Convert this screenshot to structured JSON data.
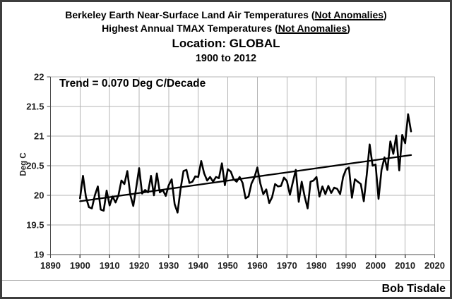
{
  "window": {
    "background": "#ffffff",
    "border_color": "#3d3d3d"
  },
  "titles": {
    "line1": {
      "pre": "Berkeley Earth Near-Surface Land Air Temperatures (",
      "underline": "Not Anomalies",
      "post": ")"
    },
    "line2": {
      "pre": "Highest Annual TMAX Temperatures (",
      "underline": "Not Anomalies",
      "post": ")"
    },
    "line3": "Location: GLOBAL",
    "line4": "1900 to 2012"
  },
  "annotations": {
    "trend_label": "Trend = 0.070 Deg C/Decade",
    "signature": "Bob Tisdale"
  },
  "chart_data": {
    "type": "line",
    "title": "Berkeley Earth Near-Surface Land Air Temperatures (Not Anomalies) — Highest Annual TMAX Temperatures (Not Anomalies) — Location: GLOBAL — 1900 to 2012",
    "xlabel": "",
    "ylabel": "Deg C",
    "xlim": [
      1890,
      2020
    ],
    "ylim": [
      19,
      22
    ],
    "x_ticks": [
      1890,
      1900,
      1910,
      1920,
      1930,
      1940,
      1950,
      1960,
      1970,
      1980,
      1990,
      2000,
      2010,
      2020
    ],
    "y_ticks": [
      19,
      19.5,
      20,
      20.5,
      21,
      21.5,
      22
    ],
    "grid": true,
    "legend": false,
    "line_color": "#000000",
    "trend_color": "#000000",
    "grid_color": "#b4b4b4",
    "axis_color": "#4d4d4d",
    "tick_label_color": "#1f1f1f",
    "trend": {
      "label": "Trend = 0.070 Deg C/Decade",
      "deg_c_per_decade": 0.07,
      "start_year": 1900,
      "start_value": 19.9,
      "end_year": 2012,
      "end_value": 20.68
    },
    "series": [
      {
        "name": "Highest Annual TMAX Temperature (Deg C)",
        "x": [
          1900,
          1901,
          1902,
          1903,
          1904,
          1905,
          1906,
          1907,
          1908,
          1909,
          1910,
          1911,
          1912,
          1913,
          1914,
          1915,
          1916,
          1917,
          1918,
          1919,
          1920,
          1921,
          1922,
          1923,
          1924,
          1925,
          1926,
          1927,
          1928,
          1929,
          1930,
          1931,
          1932,
          1933,
          1934,
          1935,
          1936,
          1937,
          1938,
          1939,
          1940,
          1941,
          1942,
          1943,
          1944,
          1945,
          1946,
          1947,
          1948,
          1949,
          1950,
          1951,
          1952,
          1953,
          1954,
          1955,
          1956,
          1957,
          1958,
          1959,
          1960,
          1961,
          1962,
          1963,
          1964,
          1965,
          1966,
          1967,
          1968,
          1969,
          1970,
          1971,
          1972,
          1973,
          1974,
          1975,
          1976,
          1977,
          1978,
          1979,
          1980,
          1981,
          1982,
          1983,
          1984,
          1985,
          1986,
          1987,
          1988,
          1989,
          1990,
          1991,
          1992,
          1993,
          1994,
          1995,
          1996,
          1997,
          1998,
          1999,
          2000,
          2001,
          2002,
          2003,
          2004,
          2005,
          2006,
          2007,
          2008,
          2009,
          2010,
          2011,
          2012
        ],
        "values": [
          19.95,
          20.33,
          19.97,
          19.8,
          19.78,
          20.0,
          20.15,
          19.76,
          19.74,
          20.08,
          19.83,
          19.98,
          19.88,
          20.0,
          20.25,
          20.19,
          20.41,
          20.01,
          19.82,
          20.13,
          20.46,
          20.03,
          20.09,
          20.05,
          20.33,
          20.0,
          20.37,
          20.05,
          20.09,
          19.99,
          20.17,
          20.27,
          19.85,
          19.71,
          20.1,
          20.41,
          20.43,
          20.21,
          20.23,
          20.32,
          20.31,
          20.58,
          20.37,
          20.25,
          20.31,
          20.23,
          20.31,
          20.29,
          20.54,
          20.17,
          20.44,
          20.4,
          20.27,
          20.23,
          20.31,
          20.21,
          19.95,
          19.98,
          20.2,
          20.3,
          20.47,
          20.2,
          20.02,
          20.1,
          19.87,
          19.97,
          20.19,
          20.15,
          20.16,
          20.3,
          20.24,
          20.01,
          20.22,
          20.43,
          19.89,
          20.23,
          19.98,
          19.78,
          20.23,
          20.25,
          20.31,
          19.98,
          20.15,
          20.02,
          20.16,
          20.04,
          20.13,
          20.11,
          20.02,
          20.31,
          20.44,
          20.47,
          19.96,
          20.27,
          20.23,
          20.19,
          19.9,
          20.35,
          20.86,
          20.5,
          20.52,
          19.94,
          20.43,
          20.64,
          20.43,
          20.91,
          20.7,
          21.01,
          20.42,
          21.02,
          20.88,
          21.37,
          21.08
        ]
      }
    ]
  }
}
